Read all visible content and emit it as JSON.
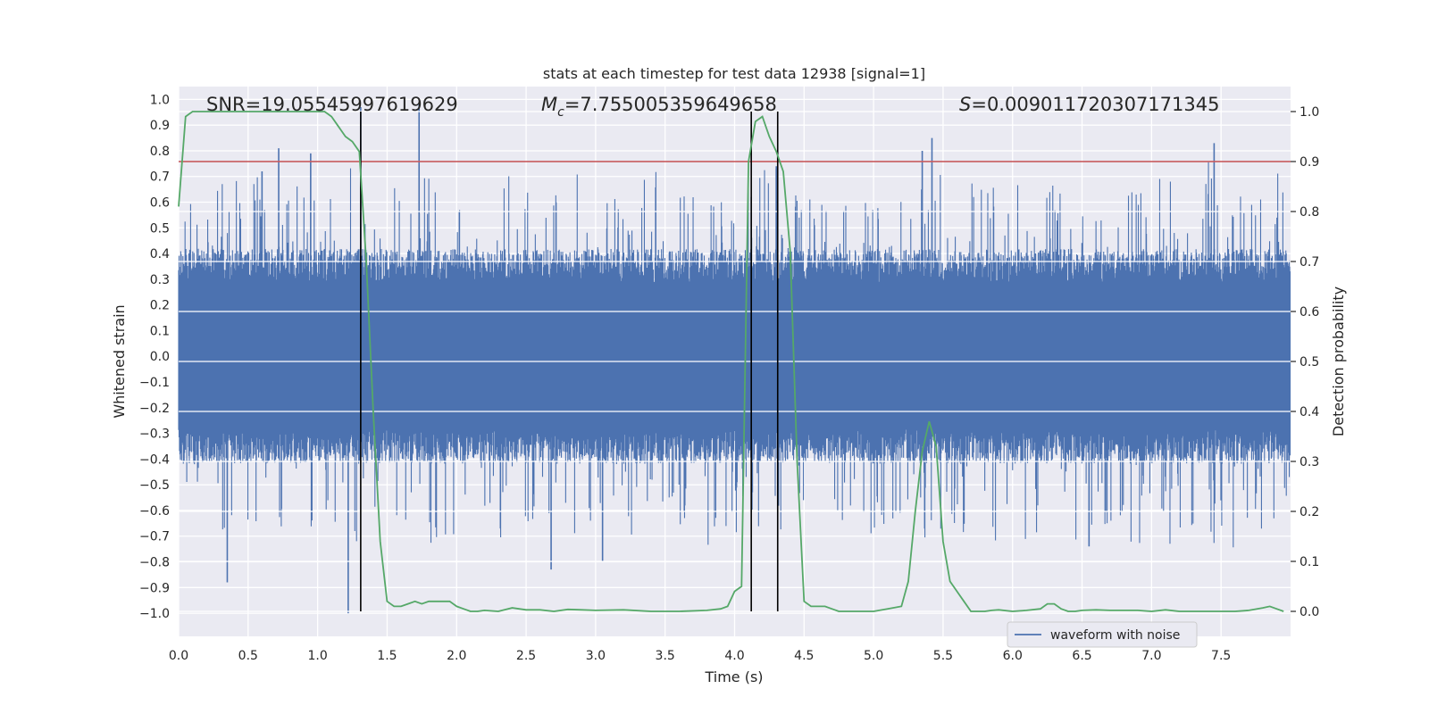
{
  "chart_data": {
    "type": "line",
    "title": "stats at each timestep for test data 12938 [signal=1]",
    "xlabel": "Time (s)",
    "ylabel_left": "Whitened strain",
    "ylabel_right": "Detection probability",
    "xlim": [
      0.0,
      8.0
    ],
    "ylim_left": [
      -1.09,
      1.05
    ],
    "ylim_right": [
      -0.05,
      1.05
    ],
    "x_ticks": [
      0.0,
      0.5,
      1.0,
      1.5,
      2.0,
      2.5,
      3.0,
      3.5,
      4.0,
      4.5,
      5.0,
      5.5,
      6.0,
      6.5,
      7.0,
      7.5
    ],
    "x_tick_labels": [
      "0.0",
      "0.5",
      "1.0",
      "1.5",
      "2.0",
      "2.5",
      "3.0",
      "3.5",
      "4.0",
      "4.5",
      "5.0",
      "5.5",
      "6.0",
      "6.5",
      "7.0",
      "7.5"
    ],
    "y_left_ticks": [
      -1.0,
      -0.9,
      -0.8,
      -0.7,
      -0.6,
      -0.5,
      -0.4,
      -0.3,
      -0.2,
      -0.1,
      0.0,
      0.1,
      0.2,
      0.3,
      0.4,
      0.5,
      0.6,
      0.7,
      0.8,
      0.9,
      1.0
    ],
    "y_left_tick_labels": [
      "−1.0",
      "−0.9",
      "−0.8",
      "−0.7",
      "−0.6",
      "−0.5",
      "−0.4",
      "−0.3",
      "−0.2",
      "−0.1",
      "0.0",
      "0.1",
      "0.2",
      "0.3",
      "0.4",
      "0.5",
      "0.6",
      "0.7",
      "0.8",
      "0.9",
      "1.0"
    ],
    "y_right_ticks": [
      0.0,
      0.1,
      0.2,
      0.3,
      0.4,
      0.5,
      0.6,
      0.7,
      0.8,
      0.9,
      1.0
    ],
    "y_right_tick_labels": [
      "0.0",
      "0.1",
      "0.2",
      "0.3",
      "0.4",
      "0.5",
      "0.6",
      "0.7",
      "0.8",
      "0.9",
      "1.0"
    ],
    "annotations": {
      "snr": "SNR=19.05545997619629",
      "mc_prefix": "M",
      "mc_subscript": "c",
      "mc_value": "=7.755005359649658",
      "s_prefix": "S",
      "s_value": "=0.009011720307171345"
    },
    "legend": {
      "label": "waveform with noise",
      "location": "lower-right"
    },
    "threshold_line": {
      "value": 0.9,
      "axis": "right",
      "color": "#c44e52"
    },
    "event_markers_x": [
      1.31,
      4.12,
      4.31
    ],
    "detection_probability": {
      "color": "#55a868",
      "x": [
        0.0,
        0.05,
        0.1,
        0.2,
        0.3,
        0.4,
        0.5,
        0.6,
        0.7,
        0.8,
        0.9,
        1.0,
        1.05,
        1.1,
        1.15,
        1.2,
        1.25,
        1.3,
        1.35,
        1.4,
        1.45,
        1.5,
        1.55,
        1.6,
        1.65,
        1.7,
        1.75,
        1.8,
        1.85,
        1.9,
        1.95,
        2.0,
        2.05,
        2.1,
        2.15,
        2.2,
        2.3,
        2.4,
        2.5,
        2.6,
        2.7,
        2.8,
        2.9,
        3.0,
        3.2,
        3.4,
        3.6,
        3.8,
        3.9,
        3.95,
        4.0,
        4.05,
        4.1,
        4.15,
        4.2,
        4.25,
        4.3,
        4.35,
        4.4,
        4.45,
        4.5,
        4.55,
        4.6,
        4.65,
        4.7,
        4.75,
        4.8,
        4.85,
        4.9,
        5.0,
        5.1,
        5.2,
        5.25,
        5.3,
        5.35,
        5.4,
        5.45,
        5.5,
        5.55,
        5.6,
        5.65,
        5.7,
        5.75,
        5.8,
        5.85,
        5.9,
        6.0,
        6.1,
        6.2,
        6.25,
        6.3,
        6.35,
        6.4,
        6.45,
        6.5,
        6.6,
        6.7,
        6.8,
        6.9,
        7.0,
        7.1,
        7.2,
        7.3,
        7.4,
        7.5,
        7.6,
        7.7,
        7.8,
        7.85,
        7.9,
        7.95
      ],
      "values": [
        0.81,
        0.99,
        1.0,
        1.0,
        1.0,
        1.0,
        1.0,
        1.0,
        1.0,
        1.0,
        1.0,
        1.0,
        1.0,
        0.99,
        0.97,
        0.95,
        0.94,
        0.92,
        0.7,
        0.4,
        0.14,
        0.02,
        0.01,
        0.01,
        0.015,
        0.02,
        0.015,
        0.02,
        0.02,
        0.02,
        0.02,
        0.01,
        0.005,
        0.0,
        0.0,
        0.002,
        0.0,
        0.007,
        0.003,
        0.003,
        0.0,
        0.004,
        0.003,
        0.002,
        0.003,
        0.0,
        0.0,
        0.002,
        0.005,
        0.01,
        0.04,
        0.05,
        0.9,
        0.98,
        0.99,
        0.95,
        0.92,
        0.88,
        0.72,
        0.3,
        0.02,
        0.01,
        0.01,
        0.01,
        0.005,
        0.0,
        0.0,
        0.0,
        0.0,
        0.0,
        0.005,
        0.01,
        0.06,
        0.2,
        0.32,
        0.38,
        0.33,
        0.14,
        0.06,
        0.04,
        0.02,
        0.0,
        0.0,
        0.0,
        0.002,
        0.003,
        0.0,
        0.002,
        0.005,
        0.015,
        0.015,
        0.005,
        0.0,
        0.0,
        0.002,
        0.003,
        0.002,
        0.002,
        0.002,
        0.0,
        0.003,
        0.0,
        0.0,
        0.0,
        0.0,
        0.0,
        0.002,
        0.007,
        0.01,
        0.005,
        0.0
      ]
    },
    "waveform_with_noise": {
      "color": "#4c72b0",
      "note": "dense noise series; peak excursions listed",
      "peak_x": [
        0.35,
        0.6,
        0.72,
        0.95,
        1.22,
        1.31,
        1.73,
        2.68,
        3.05,
        4.12,
        4.3,
        5.35,
        5.42,
        6.55,
        7.45
      ],
      "peak_values": [
        -0.88,
        0.72,
        0.81,
        0.79,
        -1.0,
        0.97,
        0.98,
        -0.83,
        -0.8,
        0.62,
        0.74,
        0.8,
        0.85,
        -0.74,
        0.83
      ],
      "typical_amplitude": 0.38
    }
  }
}
